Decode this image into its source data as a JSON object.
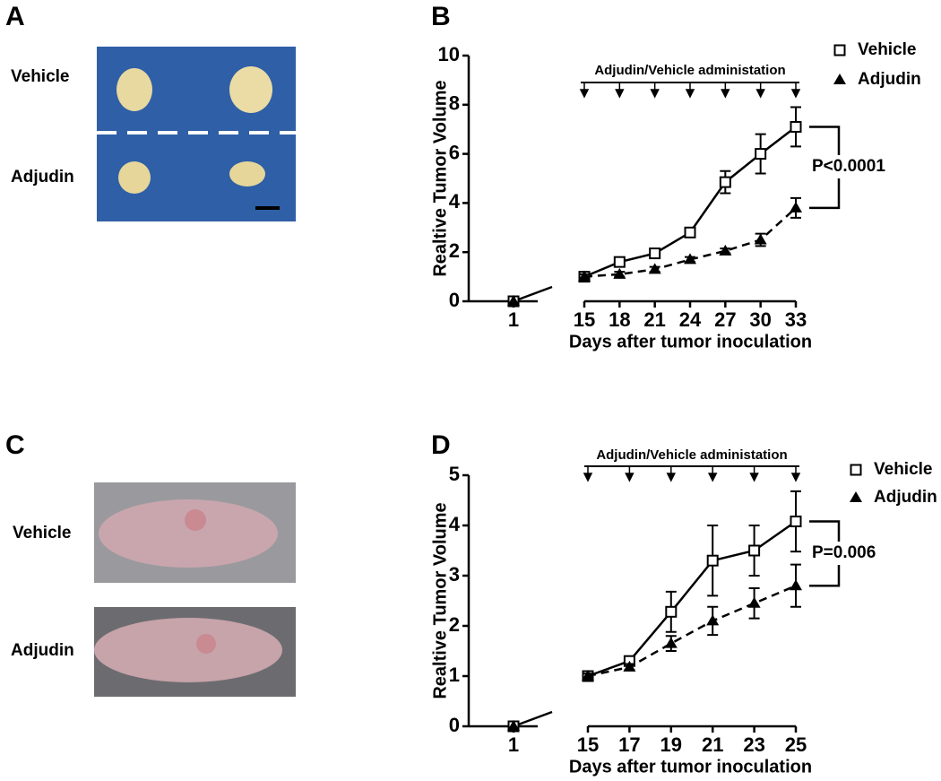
{
  "panel_labels": [
    "A",
    "B",
    "C",
    "D"
  ],
  "photo_a": {
    "labels": [
      "Vehicle",
      "Adjudin"
    ]
  },
  "photo_c": {
    "labels": [
      "Vehicle",
      "Adjudin"
    ]
  },
  "chart_data": [
    {
      "type": "line",
      "categories": [
        "1",
        "15",
        "18",
        "21",
        "24",
        "27",
        "30",
        "33"
      ],
      "series": [
        {
          "name": "Vehicle",
          "color": "#000000",
          "marker": "square-open",
          "dashed": false,
          "values": [
            0,
            1,
            1.6,
            1.95,
            2.8,
            4.85,
            6.0,
            7.1
          ],
          "errors": [
            null,
            0.1,
            0.1,
            0.1,
            0.1,
            0.45,
            0.8,
            0.8
          ]
        },
        {
          "name": "Adjudin",
          "color": "#000000",
          "marker": "triangle",
          "dashed": true,
          "values": [
            0,
            1,
            1.1,
            1.3,
            1.7,
            2.05,
            2.5,
            3.8
          ],
          "errors": [
            null,
            0.1,
            0.1,
            0.1,
            0.1,
            0.1,
            0.25,
            0.4
          ]
        }
      ],
      "ylim": [
        0,
        10
      ],
      "yticks": [
        0,
        2,
        4,
        6,
        8,
        10
      ],
      "ylabel": "Realtive Tumor Volume",
      "xlabel": "Days after tumor inoculation",
      "annotation": "Adjudin/Vehicle administation",
      "p_value": "P<0.0001",
      "legend": "upper right"
    },
    {
      "type": "line",
      "categories": [
        "1",
        "15",
        "17",
        "19",
        "21",
        "23",
        "25"
      ],
      "series": [
        {
          "name": "Vehicle",
          "color": "#000000",
          "marker": "square-open",
          "dashed": false,
          "values": [
            0,
            1,
            1.3,
            2.28,
            3.3,
            3.5,
            4.08
          ],
          "errors": [
            null,
            0.05,
            0.08,
            0.4,
            0.7,
            0.5,
            0.6
          ]
        },
        {
          "name": "Adjudin",
          "color": "#000000",
          "marker": "triangle",
          "dashed": true,
          "values": [
            0,
            1,
            1.18,
            1.65,
            2.1,
            2.45,
            2.8
          ],
          "errors": [
            null,
            0.05,
            0.06,
            0.15,
            0.28,
            0.3,
            0.42
          ]
        }
      ],
      "ylim": [
        0,
        5
      ],
      "yticks": [
        0,
        1,
        2,
        3,
        4,
        5
      ],
      "ylabel": "Realtive Tumor Volume",
      "xlabel": "Days after tumor inoculation",
      "annotation": "Adjudin/Vehicle administation",
      "p_value": "P=0.006",
      "legend": "upper right"
    }
  ]
}
